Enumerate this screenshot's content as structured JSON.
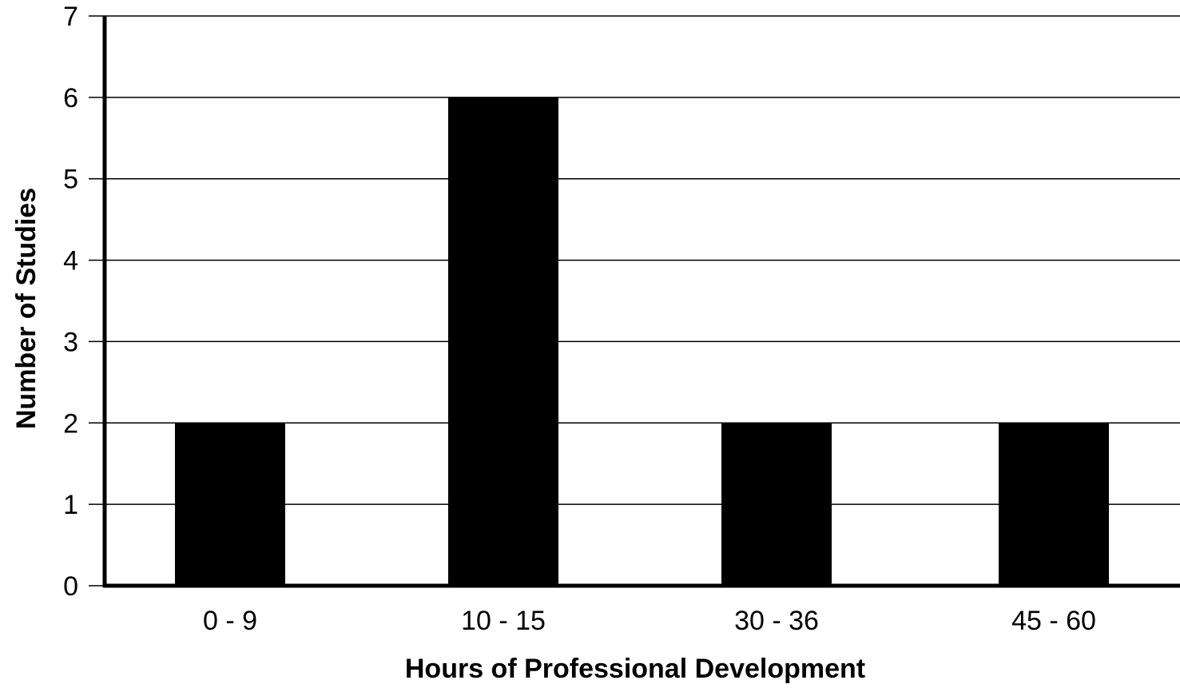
{
  "chart_data": {
    "type": "bar",
    "title": "",
    "xlabel": "Hours of Professional Development",
    "ylabel": "Number of Studies",
    "categories": [
      "0 - 9",
      "10 - 15",
      "30 - 36",
      "45 - 60"
    ],
    "values": [
      2,
      6,
      2,
      2
    ],
    "ylim": [
      0,
      7
    ],
    "yticks": [
      "0",
      "1",
      "2",
      "3",
      "4",
      "5",
      "6",
      "7"
    ],
    "grid": "horizontal",
    "legend": "none",
    "bar_color": "#000000",
    "grid_color": "#000000",
    "axis_color": "#000000"
  }
}
